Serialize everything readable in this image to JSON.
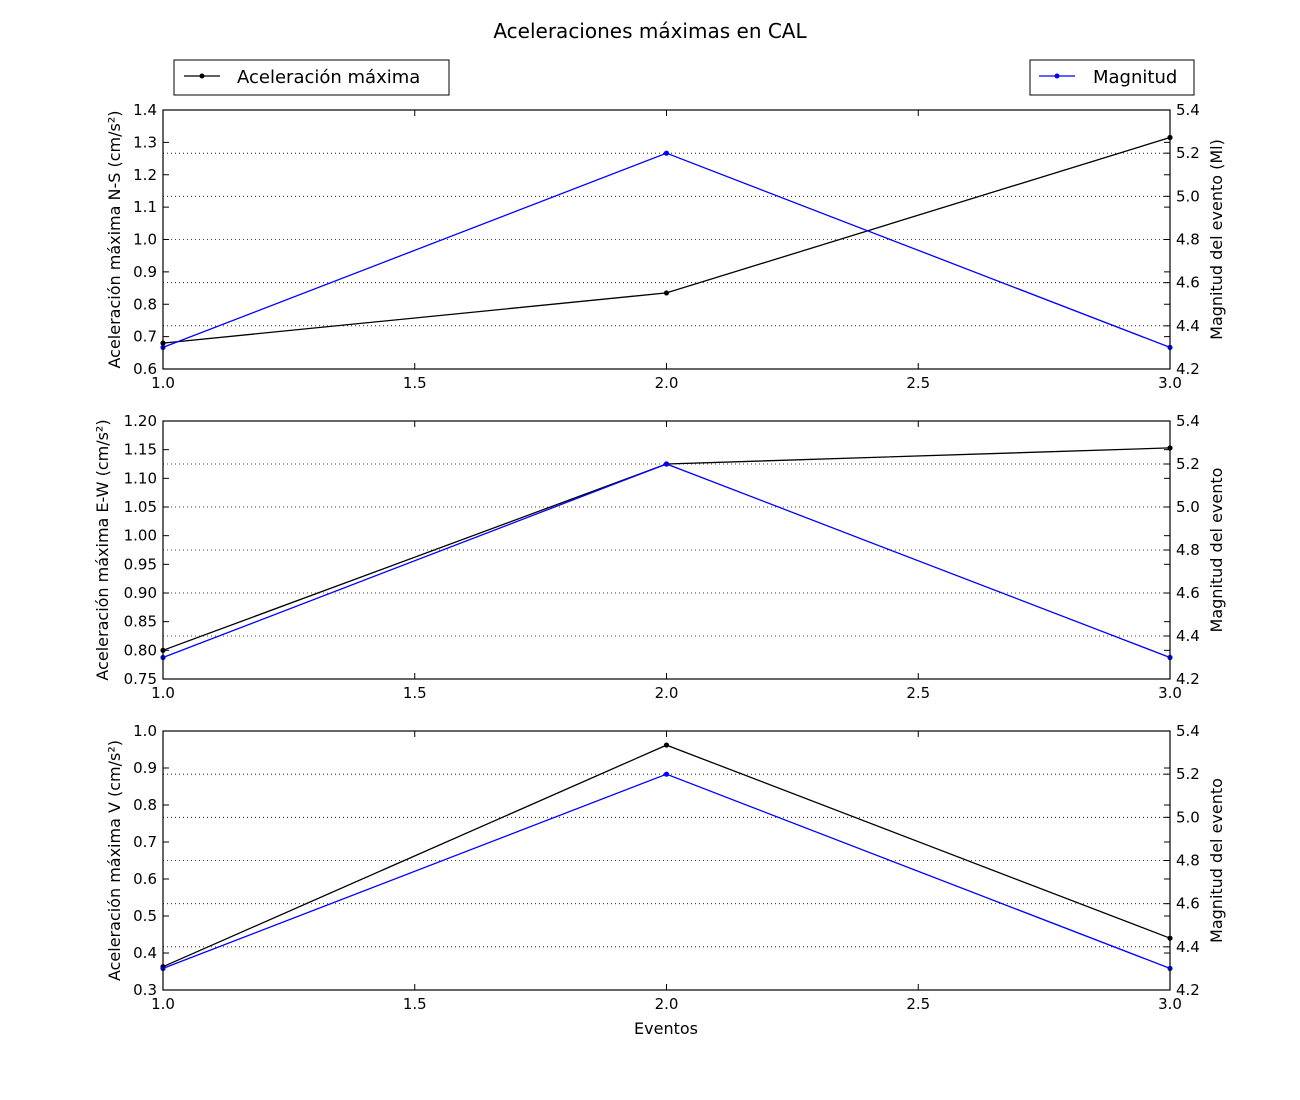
{
  "chart_data": {
    "type": "line",
    "title": "Aceleraciones máximas en CAL",
    "legend": {
      "left_label": "Aceleración máxima",
      "right_label": "Magnitud",
      "left_placement": "top-left",
      "right_placement": "top-right"
    },
    "colors": {
      "acceleration": "#000000",
      "magnitude": "#0000ff"
    },
    "xlabel": "Eventos",
    "x_ticks": [
      "1.0",
      "1.5",
      "2.0",
      "2.5",
      "3.0"
    ],
    "xlim": [
      1.0,
      3.0
    ],
    "grid": "horizontal dotted on right axis",
    "panels": [
      {
        "ylabel_left": "Aceleración máxima N-S (cm/s²)",
        "ylabel_right": "Magnitud del evento (Ml)",
        "ylim_left": [
          0.6,
          1.4
        ],
        "ylim_right": [
          4.2,
          5.4
        ],
        "yticks_left": [
          "0.6",
          "0.7",
          "0.8",
          "0.9",
          "1.0",
          "1.1",
          "1.2",
          "1.3",
          "1.4"
        ],
        "yticks_right": [
          "4.2",
          "4.4",
          "4.6",
          "4.8",
          "5.0",
          "5.2",
          "5.4"
        ],
        "series": [
          {
            "name": "Aceleración máxima",
            "axis": "left",
            "x": [
              1,
              2,
              3
            ],
            "values": [
              0.68,
              0.835,
              1.315
            ]
          },
          {
            "name": "Magnitud",
            "axis": "right",
            "x": [
              1,
              2,
              3
            ],
            "values": [
              4.3,
              5.2,
              4.3
            ]
          }
        ]
      },
      {
        "ylabel_left": "Aceleración máxima E-W (cm/s²)",
        "ylabel_right": "Magnitud del evento",
        "ylim_left": [
          0.75,
          1.2
        ],
        "ylim_right": [
          4.2,
          5.4
        ],
        "yticks_left": [
          "0.75",
          "0.80",
          "0.85",
          "0.90",
          "0.95",
          "1.00",
          "1.05",
          "1.10",
          "1.15",
          "1.20"
        ],
        "yticks_right": [
          "4.2",
          "4.4",
          "4.6",
          "4.8",
          "5.0",
          "5.2",
          "5.4"
        ],
        "series": [
          {
            "name": "Aceleración máxima",
            "axis": "left",
            "x": [
              1,
              2,
              3
            ],
            "values": [
              0.8,
              1.125,
              1.153
            ]
          },
          {
            "name": "Magnitud",
            "axis": "right",
            "x": [
              1,
              2,
              3
            ],
            "values": [
              4.3,
              5.2,
              4.3
            ]
          }
        ]
      },
      {
        "ylabel_left": "Aceleración máxima V (cm/s²)",
        "ylabel_right": "Magnitud del evento",
        "ylim_left": [
          0.3,
          1.0
        ],
        "ylim_right": [
          4.2,
          5.4
        ],
        "yticks_left": [
          "0.3",
          "0.4",
          "0.5",
          "0.6",
          "0.7",
          "0.8",
          "0.9",
          "1.0"
        ],
        "yticks_right": [
          "4.2",
          "4.4",
          "4.6",
          "4.8",
          "5.0",
          "5.2",
          "5.4"
        ],
        "series": [
          {
            "name": "Aceleración máxima",
            "axis": "left",
            "x": [
              1,
              2,
              3
            ],
            "values": [
              0.363,
              0.962,
              0.44
            ]
          },
          {
            "name": "Magnitud",
            "axis": "right",
            "x": [
              1,
              2,
              3
            ],
            "values": [
              4.3,
              5.2,
              4.3
            ]
          }
        ]
      }
    ]
  }
}
